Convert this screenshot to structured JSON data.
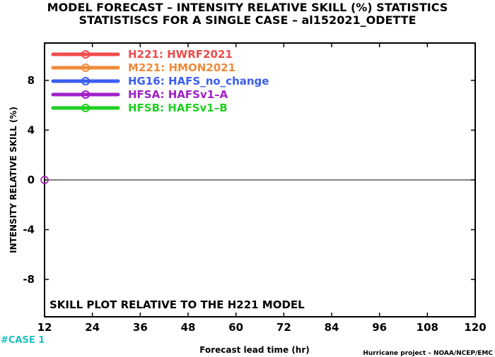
{
  "title_line1": "MODEL FORECAST – INTENSITY RELATIVE SKILL (%) STATISTICS",
  "title_line2": "STATISTISCS FOR A SINGLE CASE – al152021_ODETTE",
  "annotation": "SKILL PLOT RELATIVE TO THE H221 MODEL",
  "case_label": "#CASE  1",
  "credit": "Hurricane project – NOAA/NCEP/EMC",
  "chart_data": {
    "type": "line",
    "xlabel": "Forecast lead time (hr)",
    "ylabel": "INTENSITY RELATIVE SKILL (%)",
    "xlim": [
      12,
      120
    ],
    "ylim": [
      -11,
      11
    ],
    "x_ticks": [
      "12",
      "24",
      "36",
      "48",
      "60",
      "72",
      "84",
      "96",
      "108",
      "120"
    ],
    "y_ticks": [
      "8",
      "4",
      "0",
      "-4",
      "-8"
    ],
    "y_tick_values": [
      8,
      4,
      0,
      -4,
      -8
    ],
    "grid": false,
    "zero_line": true,
    "legend_position": "top-left",
    "series": [
      {
        "name": "H221",
        "label": "HWRF2021",
        "color": "#f04a4a",
        "x": [
          12
        ],
        "y": [
          0
        ]
      },
      {
        "name": "M221",
        "label": "HMON2021",
        "color": "#f08a3a",
        "x": [],
        "y": []
      },
      {
        "name": "HG16",
        "label": "HAFS_no_change",
        "color": "#3a5ef0",
        "x": [],
        "y": []
      },
      {
        "name": "HFSA",
        "label": "HAFSv1–A",
        "color": "#a020c8",
        "x": [
          12
        ],
        "y": [
          0
        ]
      },
      {
        "name": "HFSB",
        "label": "HAFSv1–B",
        "color": "#20d020",
        "x": [],
        "y": []
      }
    ]
  }
}
